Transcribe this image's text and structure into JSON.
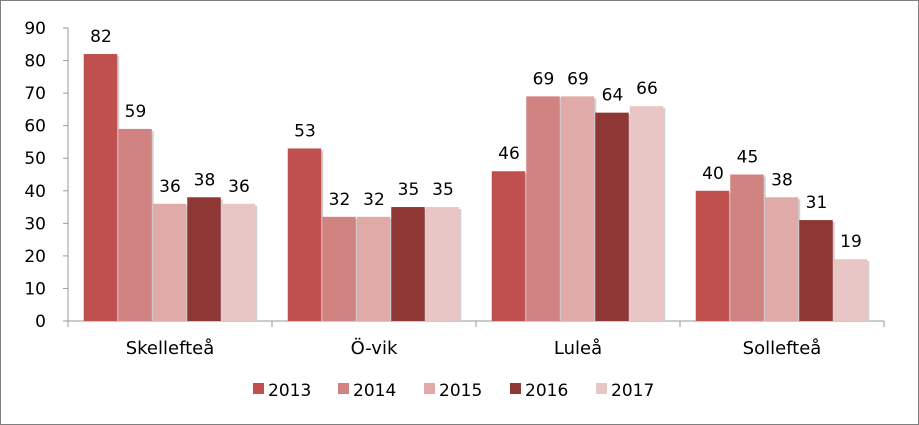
{
  "chart_data": {
    "type": "bar",
    "categories": [
      "Skellefteå",
      "Ö-vik",
      "Luleå",
      "Sollefteå"
    ],
    "series": [
      {
        "name": "2013",
        "color": "#c0504d",
        "values": [
          82,
          53,
          46,
          40
        ]
      },
      {
        "name": "2014",
        "color": "#d08381",
        "values": [
          59,
          32,
          69,
          45
        ]
      },
      {
        "name": "2015",
        "color": "#e0aaa9",
        "values": [
          36,
          32,
          69,
          38
        ]
      },
      {
        "name": "2016",
        "color": "#8e3735",
        "values": [
          38,
          35,
          64,
          31
        ]
      },
      {
        "name": "2017",
        "color": "#e8c6c6",
        "values": [
          36,
          35,
          66,
          19
        ]
      }
    ],
    "ylim": [
      0,
      90
    ],
    "yticks": [
      0,
      10,
      20,
      30,
      40,
      50,
      60,
      70,
      80,
      90
    ],
    "legend_position": "bottom",
    "grid": false
  }
}
